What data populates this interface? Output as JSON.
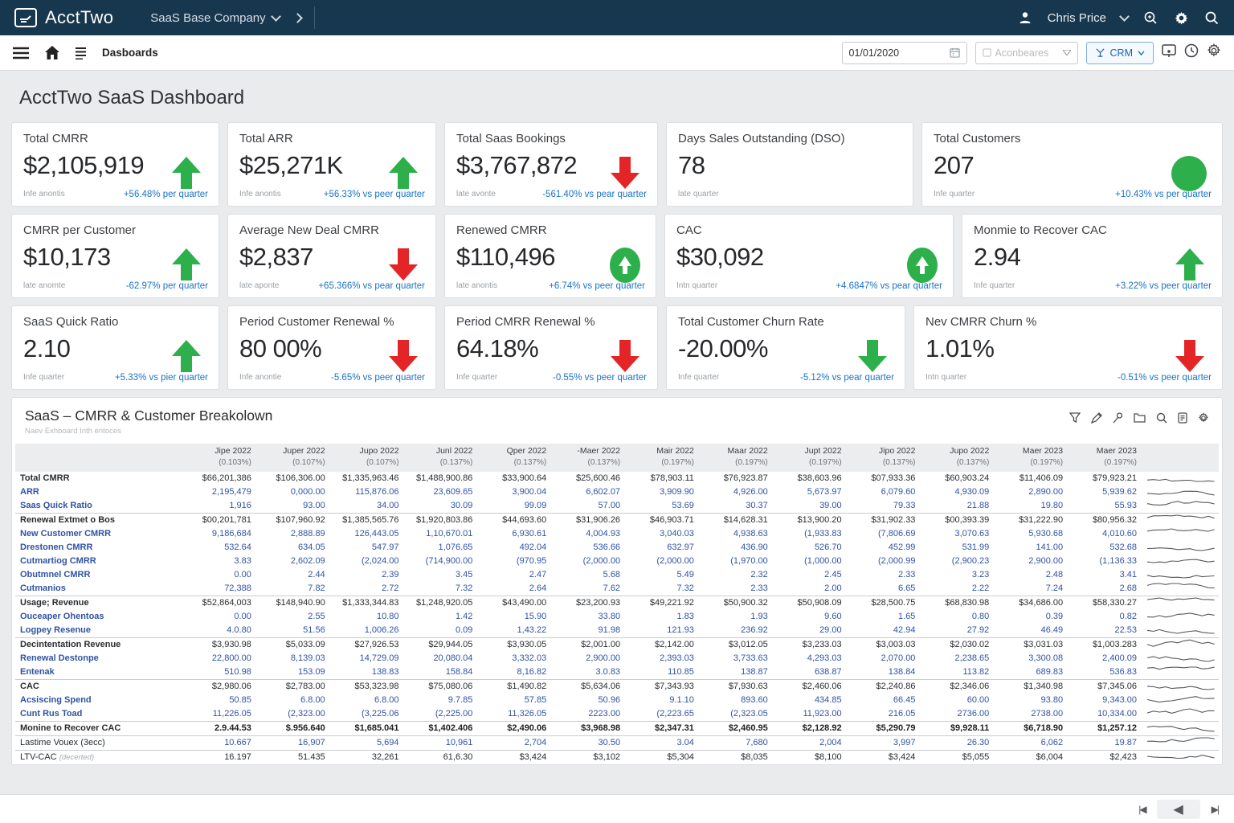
{
  "topbar": {
    "brand": "AcctTwo",
    "company": "SaaS Base Company",
    "user": "Chris Price"
  },
  "toolbar": {
    "breadcrumb": "Dasboards",
    "date_value": "01/01/2020",
    "filter_placeholder": "Aconbeares",
    "crm_label": "CRM"
  },
  "page": {
    "title": "AcctTwo SaaS Dashboard"
  },
  "colors": {
    "navy": "#17374E",
    "green": "#2DB04B",
    "red": "#E42527",
    "link_blue": "#1A73C8",
    "table_blue": "#3053A4"
  },
  "kpis": [
    {
      "title": "Total CMRR",
      "value": "$2,105,919",
      "note": "Infe anontis",
      "delta": "+56.48% per quarter",
      "indicator": "arrow-up",
      "tone": "green"
    },
    {
      "title": "Total ARR",
      "value": "$25,271K",
      "note": "Infe anontis",
      "delta": "+56.33% vs peer quarter",
      "indicator": "arrow-up",
      "tone": "green"
    },
    {
      "title": "Total Saas Bookings",
      "value": "$3,767,872",
      "note": "late avonte",
      "delta": "-561.40% vs pear quarter",
      "indicator": "arrow-down",
      "tone": "red"
    },
    {
      "title": "Days Sales Outstanding (DSO)",
      "value": "78",
      "note": "late quarter",
      "delta": "",
      "indicator": "none",
      "tone": "green"
    },
    {
      "title": "Total Customers",
      "value": "207",
      "note": "Infe quarter",
      "delta": "+10.43% vs per quarter",
      "indicator": "circle",
      "tone": "green"
    },
    {
      "title": "CMRR per Customer",
      "value": "$10,173",
      "note": "late anomte",
      "delta": "-62.97% per quarter",
      "indicator": "arrow-up",
      "tone": "green"
    },
    {
      "title": "Average New Deal CMRR",
      "value": "$2,837",
      "note": "late aponte",
      "delta": "+65.366% vs pear quarter",
      "indicator": "arrow-down",
      "tone": "red"
    },
    {
      "title": "Renewed CMRR",
      "value": "$110,496",
      "note": "late anontis",
      "delta": "+6.74% vs peer quarter",
      "indicator": "circle-arrow",
      "tone": "green"
    },
    {
      "title": "CAC",
      "value": "$30,092",
      "note": "Intn quarter",
      "delta": "+4.6847% vs pear quarter",
      "indicator": "circle-arrow",
      "tone": "green"
    },
    {
      "title": "Monmie to Recover CAC",
      "value": "2.94",
      "note": "Infe quarter",
      "delta": "+3.22% vs peer quarter",
      "indicator": "arrow-up",
      "tone": "green"
    },
    {
      "title": "SaaS Quick Ratio",
      "value": "2.10",
      "note": "Infe quarter",
      "delta": "+5.33% vs pier quarter",
      "indicator": "arrow-up",
      "tone": "green"
    },
    {
      "title": "Period Customer Renewal %",
      "value": "80 00%",
      "note": "Infe anontie",
      "delta": "-5.65% vs peer quarter",
      "indicator": "arrow-down",
      "tone": "red"
    },
    {
      "title": "Period CMRR Renewal %",
      "value": "64.18%",
      "note": "Infe quarter",
      "delta": "-0.55% vs peer quarter",
      "indicator": "arrow-down",
      "tone": "red"
    },
    {
      "title": "Total Customer Churn Rate",
      "value": "-20.00%",
      "note": "Infe quarter",
      "delta": "-5.12% vs pear quarter",
      "indicator": "arrow-down",
      "tone": "green"
    },
    {
      "title": "Nev CMRR Churn %",
      "value": "1.01%",
      "note": "Intn quarter",
      "delta": "-0.51% vs peer quarter",
      "indicator": "arrow-down",
      "tone": "red"
    }
  ],
  "section": {
    "title": "SaaS – CMRR & Customer Breakolown",
    "subtitle": "Naev Exhboard Inth entoces",
    "tools": [
      "filter-icon",
      "pencil-icon",
      "pin-icon",
      "folder-icon",
      "search-icon",
      "report-icon",
      "settings-icon"
    ]
  },
  "table": {
    "columns": [
      {
        "label": "Jipe 2022",
        "sub": "(0.103%)"
      },
      {
        "label": "Juper 2022",
        "sub": "(0.107%)"
      },
      {
        "label": "Jupo 2022",
        "sub": "(0.107%)"
      },
      {
        "label": "Junl 2022",
        "sub": "(0.137%)"
      },
      {
        "label": "Qper 2022",
        "sub": "(0.137%)"
      },
      {
        "label": "-Maer 2022",
        "sub": "(0.137%)"
      },
      {
        "label": "Mair 2022",
        "sub": "(0.197%)"
      },
      {
        "label": "Maar 2022",
        "sub": "(0.197%)"
      },
      {
        "label": "Jupt 2022",
        "sub": "(0.197%)"
      },
      {
        "label": "Jipo 2022",
        "sub": "(0.137%)"
      },
      {
        "label": "Jupo 2022",
        "sub": "(0.137%)"
      },
      {
        "label": "Maer 2023",
        "sub": "(0.197%)"
      },
      {
        "label": "Maer 2023",
        "sub": "(0.197%)"
      }
    ],
    "rows": [
      {
        "label": "Total CMRR",
        "style": "dark",
        "values": [
          "$66,201,386",
          "$106,306.00",
          "$1,335,963.46",
          "$1,488,900.86",
          "$33,900.64",
          "$25,600.46",
          "$78,903.11",
          "$76,923.87",
          "$38,603.96",
          "$07,933.36",
          "$60,903.24",
          "$11,406.09",
          "$79,923.21"
        ]
      },
      {
        "label": "ARR",
        "style": "blue",
        "values": [
          "2,195,479",
          "0,000.00",
          "115,876.06",
          "23,609.65",
          "3,900.04",
          "6,602.07",
          "3,909.90",
          "4,926.00",
          "5,673.97",
          "6,079.60",
          "4,930.09",
          "2,890.00",
          "5,939.62"
        ]
      },
      {
        "label": "Saas Quick Ratio",
        "style": "blue",
        "values": [
          "1,916",
          "93.00",
          "34.00",
          "30.09",
          "99.09",
          "57.00",
          "53.69",
          "30.37",
          "39.00",
          "79.33",
          "21.88",
          "19.80",
          "55.93"
        ]
      },
      {
        "label": "Renewal Extmet o Bos",
        "style": "dark",
        "sep": true,
        "values": [
          "$00,201,781",
          "$107,960.92",
          "$1,385,565.76",
          "$1,920,803.86",
          "$44,693.60",
          "$31,906.26",
          "$46,903.71",
          "$14,628.31",
          "$13,900.20",
          "$31,902.33",
          "$00,393.39",
          "$31,222.90",
          "$80,956.32"
        ]
      },
      {
        "label": "New Customer CMRR",
        "style": "blue",
        "values": [
          "9,186,684",
          "2,888.89",
          "126,443.05",
          "1,10,670.01",
          "6,930.61",
          "4,004.93",
          "3,040.03",
          "4,938.63",
          "(1,933.83",
          "(7,806.69",
          "3,070.63",
          "5,930.68",
          "4,010.60"
        ]
      },
      {
        "label": "Drestonen CMRR",
        "style": "blue",
        "values": [
          "532.64",
          "634.05",
          "547.97",
          "1,076.65",
          "492.04",
          "536.66",
          "632.97",
          "436.90",
          "526.70",
          "452.99",
          "531.99",
          "141.00",
          "532.68"
        ]
      },
      {
        "label": "Cutmartiog CMRR",
        "style": "blue",
        "values": [
          "3.83",
          "2,602.09",
          "(2,024.00",
          "(714,900.00",
          "(970.95",
          "(2,000.00",
          "(2,000.00",
          "(1,970.00",
          "(1,000.00",
          "(2,000.99",
          "(2,900.23",
          "2,900.00",
          "(1,136.33"
        ]
      },
      {
        "label": "Obutmnel CMRR",
        "style": "blue",
        "values": [
          "0.00",
          "2.44",
          "2.39",
          "3.45",
          "2.47",
          "5.68",
          "5.49",
          "2.32",
          "2.45",
          "2.33",
          "3.23",
          "2.48",
          "3.41"
        ]
      },
      {
        "label": "Cutmanios",
        "style": "blue",
        "values": [
          "72,388",
          "7.82",
          "2.72",
          "7.32",
          "2.64",
          "7.62",
          "7.32",
          "2.33",
          "2.00",
          "6.65",
          "2.22",
          "7.24",
          "2.68"
        ]
      },
      {
        "label": "Usage; Revenue",
        "style": "dark",
        "sep": true,
        "values": [
          "$52,864,003",
          "$148,940.90",
          "$1,333,344.83",
          "$1,248,920.05",
          "$43,490.00",
          "$23,200.93",
          "$49,221.92",
          "$50,900.32",
          "$50,908.09",
          "$28,500.75",
          "$68,830.98",
          "$34,686.00",
          "$58,330.27"
        ]
      },
      {
        "label": "Ouceaper Ohentoas",
        "style": "blue",
        "values": [
          "0.00",
          "2.55",
          "10.80",
          "1.42",
          "15.90",
          "33.80",
          "1.83",
          "1.93",
          "9.60",
          "1.65",
          "0.80",
          "0.39",
          "0.82"
        ]
      },
      {
        "label": "Logpey Resenue",
        "style": "blue",
        "values": [
          "4.0.80",
          "51.56",
          "1,006.26",
          "0.09",
          "1,43.22",
          "91.98",
          "121.93",
          "236.92",
          "29.00",
          "42.94",
          "27.92",
          "46.49",
          "22.53"
        ]
      },
      {
        "label": "Decintentation Revenue",
        "style": "dark",
        "sep": true,
        "values": [
          "$3,930.98",
          "$5,033.09",
          "$27,926.53",
          "$29,944.05",
          "$3,930.05",
          "$2,001.00",
          "$2,142.00",
          "$3,012.05",
          "$3,233.03",
          "$3,003.03",
          "$2,030.02",
          "$3,031.03",
          "$1,003.283"
        ]
      },
      {
        "label": "Renewal Destonpe",
        "style": "blue",
        "values": [
          "22,800.00",
          "8,139.03",
          "14,729.09",
          "20,080.04",
          "3,332.03",
          "2,900.00",
          "2,393.03",
          "3,733.63",
          "4,293.03",
          "2,070.00",
          "2,238.65",
          "3,300.08",
          "2,400.09"
        ]
      },
      {
        "label": "Entenak",
        "style": "blue",
        "values": [
          "510.98",
          "153.09",
          "138.83",
          "158.84",
          "8,16.82",
          "3.0.83",
          "110.85",
          "138.87",
          "638.87",
          "138.84",
          "113.82",
          "689.83",
          "536.83"
        ]
      },
      {
        "label": "CAC",
        "style": "dark",
        "sep": true,
        "values": [
          "$2,980.06",
          "$2,783.00",
          "$53,323.98",
          "$75,080.06",
          "$1,490.82",
          "$5,634.06",
          "$7,343.93",
          "$7,930.63",
          "$2,460.06",
          "$2,240.86",
          "$2,346.06",
          "$1,340.98",
          "$7,345.06"
        ]
      },
      {
        "label": "Acsiscing Spend",
        "style": "blue",
        "values": [
          "50.85",
          "6.8.00",
          "6.8.00",
          "9.7.85",
          "57.85",
          "50.96",
          "9.1.10",
          "893.60",
          "434.85",
          "66.45",
          "60.00",
          "93.80",
          "9,343.00"
        ]
      },
      {
        "label": "Cunt Rus Toad",
        "style": "blue",
        "values": [
          "11,226.05",
          "(2,323.00",
          "(3,225.06",
          "(2,225.00",
          "11,326.05",
          "2223.00",
          "(2,223.65",
          "(2,323.05",
          "11,923.00",
          "216.05",
          "2736.00",
          "2738.00",
          "10,334.00"
        ]
      },
      {
        "label": "Monine to Recover CAC",
        "style": "boldrow",
        "label_dark": true,
        "sep": true,
        "values": [
          "2.9.44.53",
          "$.956.640",
          "$1,685.041",
          "$1,402.406",
          "$2,490.06",
          "$3,968.98",
          "$2,347.31",
          "$2,460.95",
          "$2,128.92",
          "$5,290.79",
          "$9,928.11",
          "$6,718.90",
          "$1,257.12"
        ]
      },
      {
        "label": "Lastime Vouex (3ecc)",
        "style": "blue",
        "label_dark": true,
        "sep": true,
        "values": [
          "10.667",
          "16,907",
          "5,694",
          "10,961",
          "2,704",
          "30.50",
          "3.04",
          "7,680",
          "2,004",
          "3,997",
          "26.30",
          "6,062",
          "19.87"
        ]
      },
      {
        "label": "LTV-CAC",
        "label_note": "(decerted)",
        "style": "dark",
        "label_dark": true,
        "sep": true,
        "values": [
          "16.197",
          "51.435",
          "32,261",
          "61,6.30",
          "$3,424",
          "$3,102",
          "$5,304",
          "$8,035",
          "$8,100",
          "$3,424",
          "$5,055",
          "$6,004",
          "$2,423"
        ]
      }
    ]
  },
  "pager": {
    "first": "first-page",
    "prev": "previous-page",
    "last": "last-page"
  }
}
